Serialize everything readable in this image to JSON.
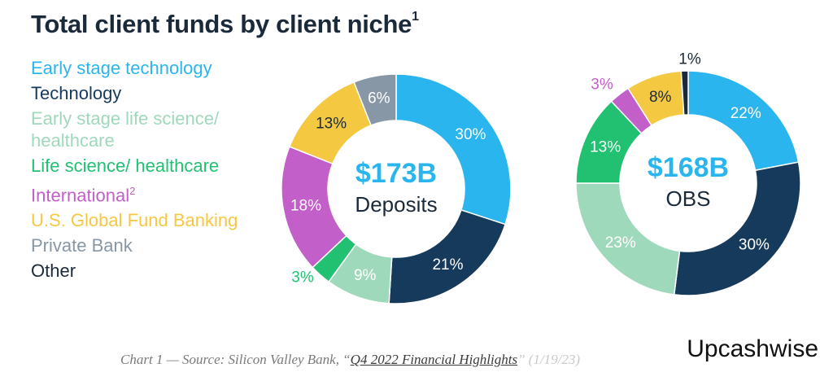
{
  "title": "Total client funds by client niche",
  "title_sup": "1",
  "legend": [
    {
      "label": "Early stage technology",
      "sup": "",
      "color": "#2bb5ee"
    },
    {
      "label": "Technology",
      "sup": "",
      "color": "#163a5c"
    },
    {
      "label": "Early stage life science/ healthcare",
      "sup": "",
      "color": "#9fd9bb"
    },
    {
      "label": "Life science/ healthcare",
      "sup": "",
      "color": "#22c172"
    },
    {
      "label": "International",
      "sup": "2",
      "color": "#c35fc8"
    },
    {
      "label": "U.S. Global Fund Banking",
      "sup": "",
      "color": "#f5c842"
    },
    {
      "label": "Private Bank",
      "sup": "",
      "color": "#8797a6"
    },
    {
      "label": "Other",
      "sup": "",
      "color": "#1b2a3a"
    }
  ],
  "chart_data": [
    {
      "type": "pie",
      "center_value": "$173B",
      "center_label": "Deposits",
      "categories": [
        "Early stage technology",
        "Technology",
        "Early stage life science/ healthcare",
        "Life science/ healthcare",
        "International",
        "U.S. Global Fund Banking",
        "Private Bank",
        "Other"
      ],
      "values": [
        30,
        21,
        9,
        3,
        18,
        13,
        6,
        0
      ],
      "labels": [
        "30%",
        "21%",
        "9%",
        "3%",
        "18%",
        "13%",
        "6%",
        ""
      ]
    },
    {
      "type": "pie",
      "center_value": "$168B",
      "center_label": "OBS",
      "categories": [
        "Early stage technology",
        "Technology",
        "Early stage life science/ healthcare",
        "Life science/ healthcare",
        "International",
        "U.S. Global Fund Banking",
        "Private Bank",
        "Other"
      ],
      "values": [
        22,
        30,
        23,
        13,
        3,
        8,
        0,
        1
      ],
      "labels": [
        "22%",
        "30%",
        "23%",
        "13%",
        "3%",
        "8%",
        "",
        "1%"
      ]
    }
  ],
  "caption": {
    "prefix": "Chart 1 — Source: Silicon Valley Bank, “",
    "link": "Q4 2022 Financial Highlights",
    "faded": "” (1/19/23)"
  },
  "brand": "Upcashwise"
}
